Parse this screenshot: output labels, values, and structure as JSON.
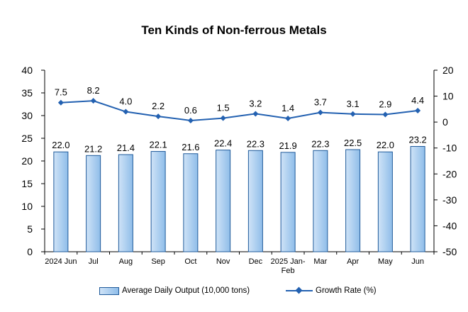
{
  "chart_data": {
    "type": "bar",
    "title": "Ten Kinds of Non-ferrous Metals",
    "categories": [
      "2024 Jun",
      "Jul",
      "Aug",
      "Sep",
      "Oct",
      "Nov",
      "Dec",
      "2025 Jan-\nFeb",
      "Mar",
      "Apr",
      "May",
      "Jun"
    ],
    "series": [
      {
        "name": "Average Daily Output (10,000 tons)",
        "type": "bar",
        "axis": "left",
        "values": [
          22.0,
          21.2,
          21.4,
          22.1,
          21.6,
          22.4,
          22.3,
          21.9,
          22.3,
          22.5,
          22.0,
          23.2
        ],
        "labels": [
          "22.0",
          "21.2",
          "21.4",
          "22.1",
          "21.6",
          "22.4",
          "22.3",
          "21.9",
          "22.3",
          "22.5",
          "22.0",
          "23.2"
        ]
      },
      {
        "name": "Growth Rate (%)",
        "type": "line",
        "axis": "right",
        "values": [
          7.5,
          8.2,
          4.0,
          2.2,
          0.6,
          1.5,
          3.2,
          1.4,
          3.7,
          3.1,
          2.9,
          4.4
        ],
        "labels": [
          "7.5",
          "8.2",
          "4.0",
          "2.2",
          "0.6",
          "1.5",
          "3.2",
          "1.4",
          "3.7",
          "3.1",
          "2.9",
          "4.4"
        ]
      }
    ],
    "y_left": {
      "lim": [
        0,
        40
      ],
      "ticks": [
        "0",
        "5",
        "10",
        "15",
        "20",
        "25",
        "30",
        "35",
        "40"
      ]
    },
    "y_right": {
      "lim": [
        -50,
        20
      ],
      "ticks": [
        "-50",
        "-40",
        "-30",
        "-20",
        "-10",
        "0",
        "10",
        "20"
      ]
    },
    "grid": false,
    "legend_position": "bottom",
    "colors": {
      "bar_fill_light": "#cfe3f7",
      "bar_fill_dark": "#8fbde9",
      "bar_border": "#1f5a9a",
      "line": "#2361b1"
    }
  }
}
